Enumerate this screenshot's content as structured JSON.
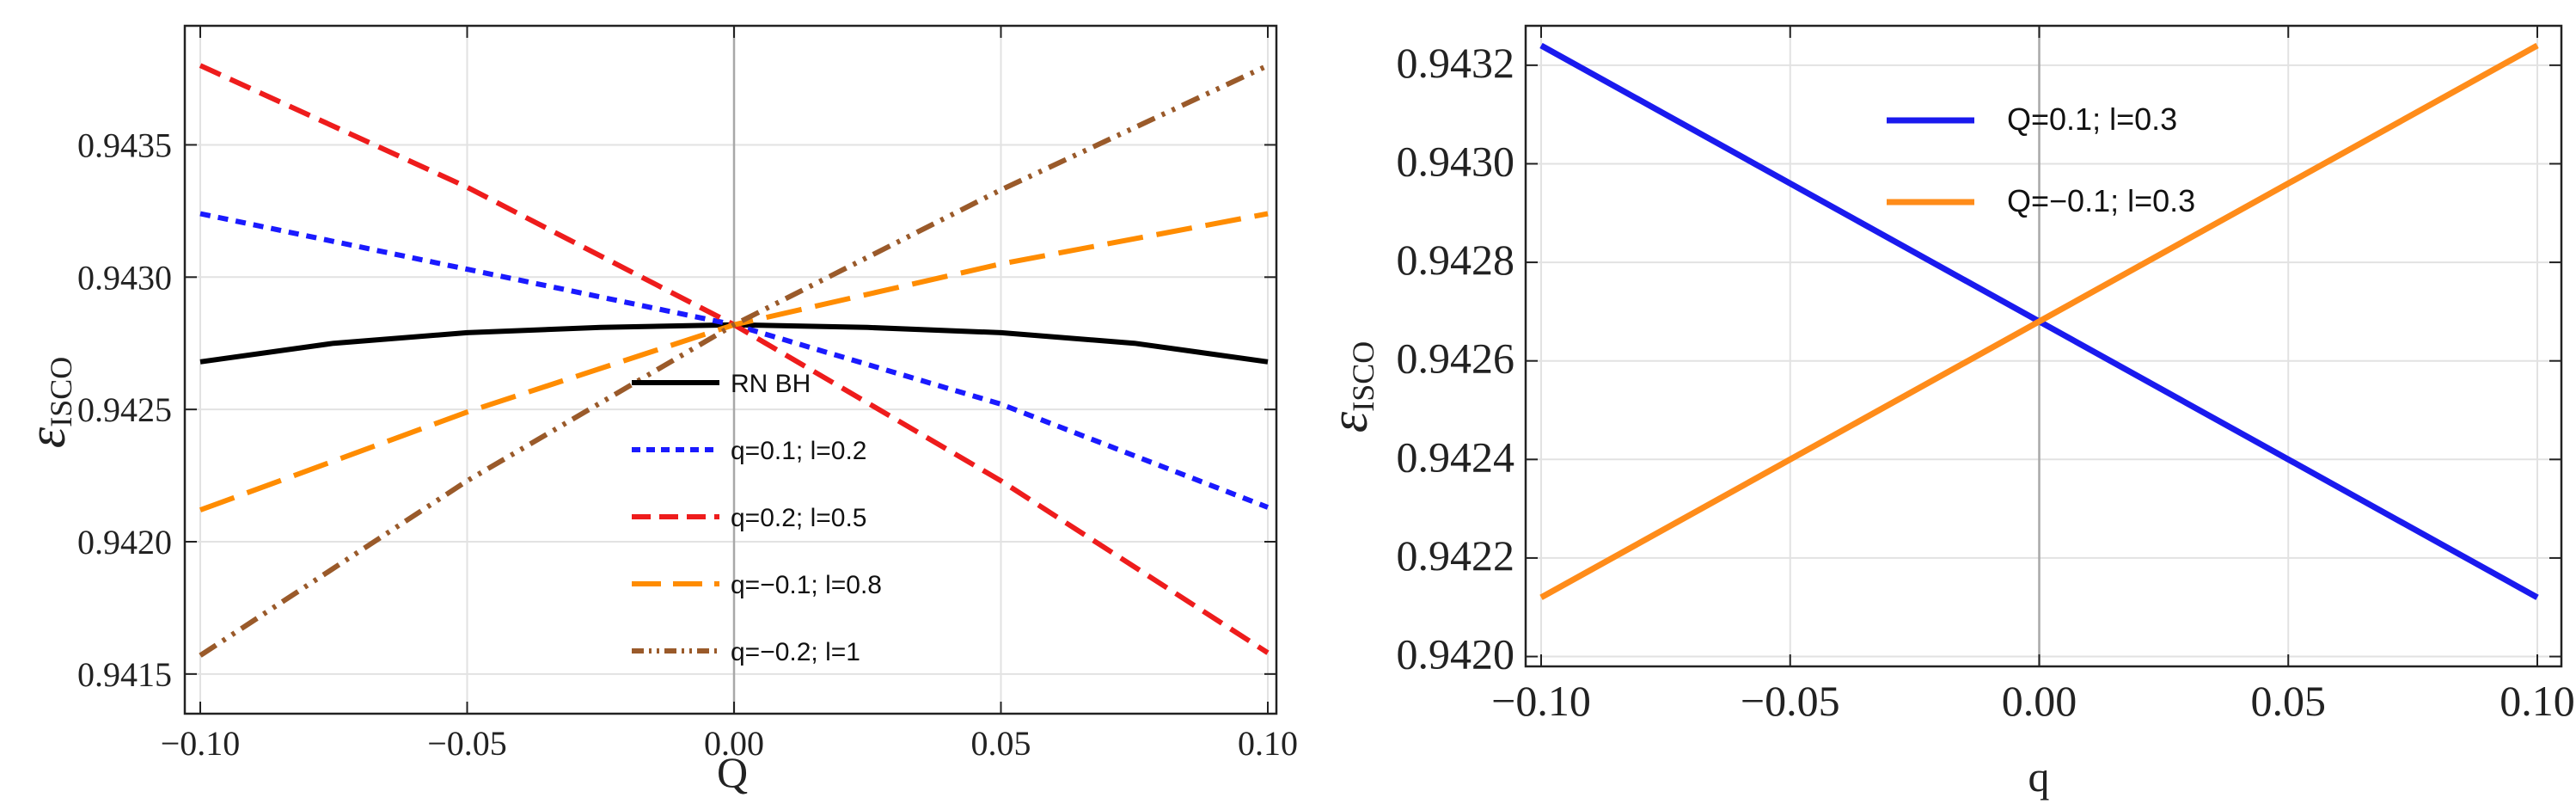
{
  "chart_data": [
    {
      "type": "line",
      "xlabel": "Q",
      "ylabel_main": "ε",
      "ylabel_sub": "ISCO",
      "xlim": [
        -0.1,
        0.1
      ],
      "ylim": [
        0.94135,
        0.94395
      ],
      "x_ticks": [
        "-0.10",
        "-0.05",
        "0.00",
        "0.05",
        "0.10"
      ],
      "x_tick_values": [
        -0.1,
        -0.05,
        0.0,
        0.05,
        0.1
      ],
      "y_ticks": [
        "0.9415",
        "0.9420",
        "0.9425",
        "0.9430",
        "0.9435"
      ],
      "y_tick_values": [
        0.9415,
        0.942,
        0.9425,
        0.943,
        0.9435
      ],
      "legend_position": "center",
      "series": [
        {
          "name": "RN BH",
          "color": "#000000",
          "dash": "solid",
          "x": [
            -0.1,
            -0.075,
            -0.05,
            -0.025,
            0.0,
            0.025,
            0.05,
            0.075,
            0.1
          ],
          "values": [
            0.94268,
            0.94275,
            0.94279,
            0.94281,
            0.94282,
            0.94281,
            0.94279,
            0.94275,
            0.94268
          ]
        },
        {
          "name": "q=0.1; l=0.2",
          "color": "#1a1aff",
          "dash": "short",
          "x": [
            -0.1,
            -0.05,
            0.0,
            0.05,
            0.1
          ],
          "values": [
            0.94324,
            0.94303,
            0.94282,
            0.94252,
            0.94213
          ]
        },
        {
          "name": "q=0.2; l=0.5",
          "color": "#ee1c1c",
          "dash": "medium",
          "x": [
            -0.1,
            -0.05,
            0.0,
            0.05,
            0.1
          ],
          "values": [
            0.9438,
            0.94334,
            0.94282,
            0.94223,
            0.94158
          ]
        },
        {
          "name": "q=-0.1; l=0.8",
          "color": "#ff8c00",
          "dash": "long",
          "x": [
            -0.1,
            -0.05,
            0.0,
            0.05,
            0.1
          ],
          "values": [
            0.94212,
            0.94249,
            0.94282,
            0.94305,
            0.94324
          ]
        },
        {
          "name": "q=-0.2; l=1",
          "color": "#9a5a2a",
          "dash": "dashdotdot",
          "x": [
            -0.1,
            -0.05,
            0.0,
            0.05,
            0.1
          ],
          "values": [
            0.94157,
            0.94223,
            0.94282,
            0.94333,
            0.9438
          ]
        }
      ]
    },
    {
      "type": "line",
      "xlabel": "q",
      "ylabel_main": "ε",
      "ylabel_sub": "ISCO",
      "xlim": [
        -0.1,
        0.1
      ],
      "ylim": [
        0.94198,
        0.94328
      ],
      "x_ticks": [
        "-0.10",
        "-0.05",
        "0.00",
        "0.05",
        "0.10"
      ],
      "x_tick_values": [
        -0.1,
        -0.05,
        0.0,
        0.05,
        0.1
      ],
      "y_ticks": [
        "0.9420",
        "0.9422",
        "0.9424",
        "0.9426",
        "0.9428",
        "0.9430",
        "0.9432"
      ],
      "y_tick_values": [
        0.942,
        0.9422,
        0.9424,
        0.9426,
        0.9428,
        0.943,
        0.9432
      ],
      "legend_position": "top-center",
      "series": [
        {
          "name": "Q=0.1; l=0.3",
          "color": "#1a1aee",
          "dash": "solid",
          "x": [
            -0.1,
            0.0,
            0.1
          ],
          "values": [
            0.94324,
            0.94268,
            0.94212
          ]
        },
        {
          "name": "Q=-0.1; l=0.3",
          "color": "#ff8c1a",
          "dash": "solid",
          "x": [
            -0.1,
            0.0,
            0.1
          ],
          "values": [
            0.94212,
            0.94268,
            0.94324
          ]
        }
      ]
    }
  ]
}
